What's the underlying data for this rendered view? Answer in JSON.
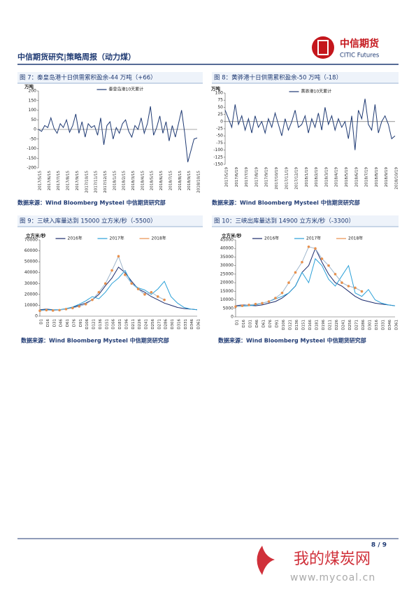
{
  "header": {
    "title": "中信期货研究|策略周报（动力煤）",
    "logo_cn": "中信期货",
    "logo_en": "CITIC Futures"
  },
  "footer": {
    "page": "8 / 9"
  },
  "watermark": {
    "name": "我的煤炭网",
    "url": "www.mycoal.cn"
  },
  "chart_data": [
    {
      "type": "line",
      "title": "图 7：秦皇岛港十日供需累积盈余-44 万吨（+66）",
      "ylabel": "万吨",
      "source": "数据来源：Wind Bloomberg Mysteel 中信期货研究部",
      "categories": [
        "2017/5/15",
        null,
        null,
        "2017/6/15",
        null,
        null,
        "2017/7/15",
        null,
        null,
        "2017/8/15",
        null,
        null,
        "2017/9/15",
        null,
        null,
        "2017/10/15",
        null,
        null,
        "2017/11/15",
        null,
        null,
        "2017/12/15",
        null,
        null,
        "2018/1/15",
        null,
        null,
        "2018/2/15",
        null,
        null,
        "2018/3/15",
        null,
        null,
        "2018/4/15",
        null,
        null,
        "2018/5/15",
        null,
        null,
        "2018/6/15",
        null,
        null,
        "2018/7/15",
        null,
        null,
        "2018/8/15",
        null,
        null,
        "2018/9/15",
        null,
        null,
        "2018/10/15"
      ],
      "series": [
        {
          "name": "秦皇岛港10天累计",
          "color": "#1f3a73",
          "values": [
            0,
            -10,
            20,
            10,
            60,
            5,
            -20,
            30,
            10,
            50,
            -15,
            20,
            80,
            -20,
            40,
            -40,
            30,
            10,
            20,
            -30,
            60,
            -80,
            20,
            40,
            -50,
            10,
            -20,
            30,
            50,
            -10,
            -40,
            20,
            0,
            60,
            -20,
            30,
            120,
            -30,
            10,
            70,
            -20,
            40,
            -60,
            20,
            -40,
            30,
            100,
            -20,
            -170,
            -110,
            -50,
            -44
          ]
        }
      ],
      "ylim": [
        -200,
        200
      ],
      "yticks": [
        -200,
        -150,
        -100,
        -50,
        0,
        50,
        100,
        150,
        200
      ],
      "grid": false,
      "legend": "top"
    },
    {
      "type": "line",
      "title": "图 8：黄骅港十日供需累积盈余-50 万吨（-18）",
      "ylabel": "万吨",
      "source": "数据来源：Wind Bloomberg Mysteel 中信期货研究部",
      "categories": [
        "2017/5/19",
        null,
        null,
        "2017/6/19",
        null,
        null,
        "2017/7/19",
        null,
        null,
        "2017/8/19",
        null,
        null,
        "2017/9/19",
        null,
        null,
        "2017/10/19",
        null,
        null,
        "2017/11/19",
        null,
        null,
        "2017/12/19",
        null,
        null,
        "2018/1/19",
        null,
        null,
        "2018/2/19",
        null,
        null,
        "2018/3/19",
        null,
        null,
        "2018/4/19",
        null,
        null,
        "2018/5/19",
        null,
        null,
        "2018/6/19",
        null,
        null,
        "2018/7/19",
        null,
        null,
        "2018/8/19",
        null,
        null,
        "2018/9/19",
        null,
        null,
        "2018/10/19"
      ],
      "series": [
        {
          "name": "黄骅港10天累计",
          "color": "#1f3a73",
          "values": [
            40,
            10,
            -20,
            60,
            -10,
            20,
            -30,
            10,
            -40,
            20,
            -20,
            0,
            -40,
            10,
            -20,
            30,
            -10,
            -50,
            10,
            -30,
            0,
            40,
            -20,
            -10,
            20,
            -40,
            10,
            -20,
            30,
            -30,
            50,
            -10,
            20,
            -30,
            10,
            -20,
            0,
            -60,
            20,
            -100,
            40,
            10,
            80,
            -10,
            -30,
            60,
            -40,
            0,
            20,
            -10,
            -60,
            -50
          ]
        }
      ],
      "ylim": [
        -150,
        100
      ],
      "yticks": [
        -150,
        -125,
        -100,
        -75,
        -50,
        -25,
        0,
        25,
        50,
        75,
        100
      ],
      "grid": false,
      "legend": "top"
    },
    {
      "type": "line",
      "title": "图 9：三峡入库量达到 15000 立方米/秒（-5500）",
      "ylabel": "立方米/秒",
      "source": "数据来源：Wind Bloomberg Mysteel 中信期货研究部",
      "categories": [
        "D1",
        "D16",
        "D31",
        "D46",
        "D61",
        "D76",
        "D91",
        "D106",
        "D121",
        "D136",
        "D151",
        "D166",
        "D181",
        "D196",
        "D211",
        "D226",
        "D241",
        "D256",
        "D271",
        "D286",
        "D301",
        "D316",
        "D331",
        "D346",
        "D361"
      ],
      "series": [
        {
          "name": "2016年",
          "color": "#1a2a6c",
          "values": [
            6000,
            6500,
            6000,
            5800,
            6500,
            8000,
            10000,
            12000,
            15000,
            20000,
            28000,
            35000,
            45000,
            40000,
            32000,
            25000,
            22000,
            18000,
            15000,
            12000,
            10000,
            8000,
            7000,
            6500,
            6000
          ]
        },
        {
          "name": "2017年",
          "color": "#2aa0d8",
          "values": [
            5500,
            6000,
            5800,
            6000,
            7000,
            8500,
            11000,
            14000,
            18000,
            16000,
            22000,
            30000,
            35000,
            42000,
            30000,
            26000,
            24000,
            20000,
            25000,
            32000,
            18000,
            12000,
            8000,
            6500,
            6000
          ]
        },
        {
          "name": "2018年",
          "color": "#e8904c",
          "values": [
            5000,
            5500,
            5200,
            5500,
            6500,
            7500,
            9000,
            11000,
            15000,
            22000,
            30000,
            42000,
            55000,
            38000,
            30000,
            25000,
            20000,
            22000,
            18000,
            15000,
            null,
            null,
            null,
            null,
            null
          ]
        }
      ],
      "ylim": [
        0,
        70000
      ],
      "yticks": [
        0,
        10000,
        20000,
        30000,
        40000,
        50000,
        60000,
        70000
      ],
      "grid": false,
      "legend": "top"
    },
    {
      "type": "line",
      "title": "图 10：三峡出库量达到 14900 立方米/秒（-3300）",
      "ylabel": "立方米/秒",
      "source": "数据来源：Wind Bloomberg Mysteel 中信期货研究部",
      "categories": [
        "D1",
        "D16",
        "D31",
        "D46",
        "D61",
        "D76",
        "D91",
        "D106",
        "D121",
        "D136",
        "D151",
        "D166",
        "D181",
        "D196",
        "D211",
        "D226",
        "D241",
        "D256",
        "D271",
        "D286",
        "D301",
        "D316",
        "D331",
        "D346",
        "D361"
      ],
      "series": [
        {
          "name": "2016年",
          "color": "#1a2a6c",
          "values": [
            6500,
            7000,
            6800,
            6500,
            7000,
            8000,
            9000,
            11000,
            14000,
            18000,
            26000,
            30000,
            40000,
            32000,
            25000,
            20000,
            18000,
            15000,
            12000,
            10000,
            9000,
            8000,
            7500,
            7000,
            6500
          ]
        },
        {
          "name": "2017年",
          "color": "#2aa0d8",
          "values": [
            6000,
            6200,
            6500,
            7000,
            8000,
            9000,
            10500,
            12000,
            14000,
            18000,
            26000,
            20000,
            34000,
            30000,
            22000,
            18000,
            24000,
            30000,
            14000,
            12000,
            16000,
            10000,
            8000,
            7000,
            6500
          ]
        },
        {
          "name": "2018年",
          "color": "#e8904c",
          "values": [
            6000,
            6500,
            7000,
            7500,
            8000,
            9000,
            11000,
            14000,
            20000,
            26000,
            32000,
            41000,
            40000,
            34000,
            30000,
            25000,
            20000,
            18000,
            17000,
            14900,
            null,
            null,
            null,
            null,
            null
          ]
        }
      ],
      "ylim": [
        0,
        45000
      ],
      "yticks": [
        0,
        5000,
        10000,
        15000,
        20000,
        25000,
        30000,
        35000,
        40000,
        45000
      ],
      "grid": false,
      "legend": "top"
    }
  ]
}
